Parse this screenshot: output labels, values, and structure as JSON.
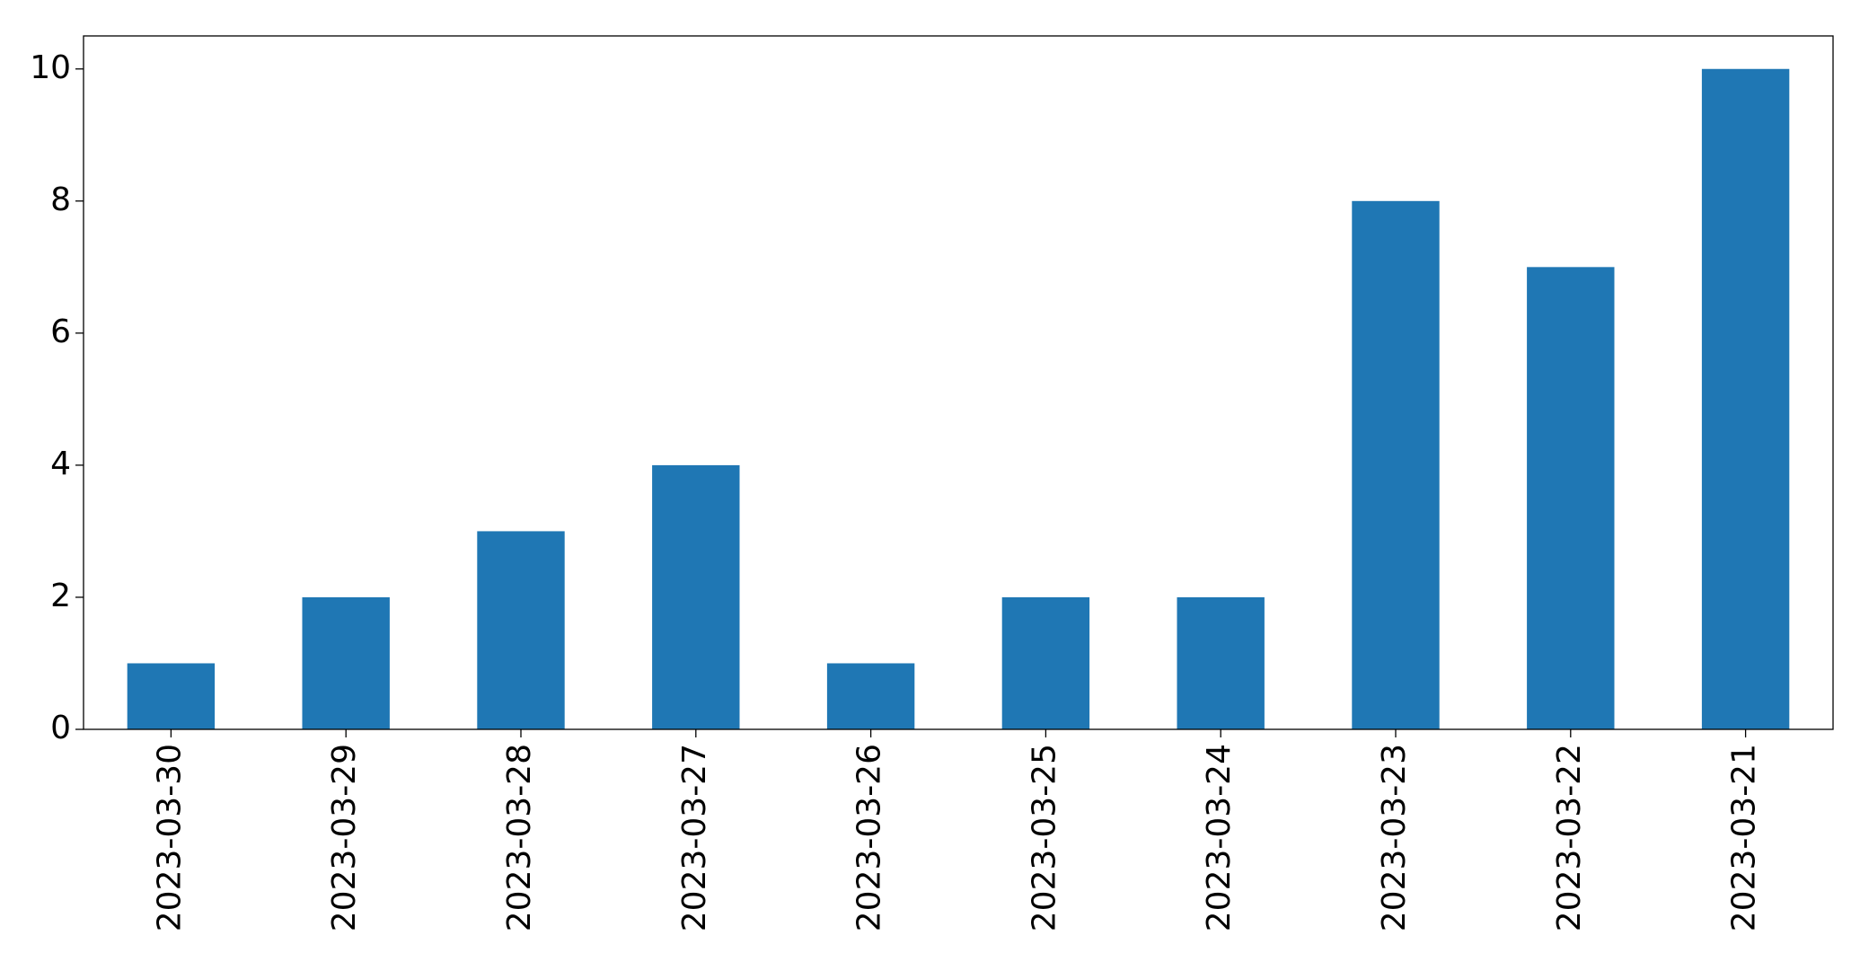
{
  "chart_data": {
    "type": "bar",
    "categories": [
      "2023-03-30",
      "2023-03-29",
      "2023-03-28",
      "2023-03-27",
      "2023-03-26",
      "2023-03-25",
      "2023-03-24",
      "2023-03-23",
      "2023-03-22",
      "2023-03-21"
    ],
    "values": [
      1,
      2,
      3,
      4,
      1,
      2,
      2,
      8,
      7,
      10
    ],
    "color": "#1f77b4",
    "ylim": [
      0,
      10.5
    ],
    "yticks": [
      0,
      2,
      4,
      6,
      8,
      10
    ],
    "grid": false
  }
}
